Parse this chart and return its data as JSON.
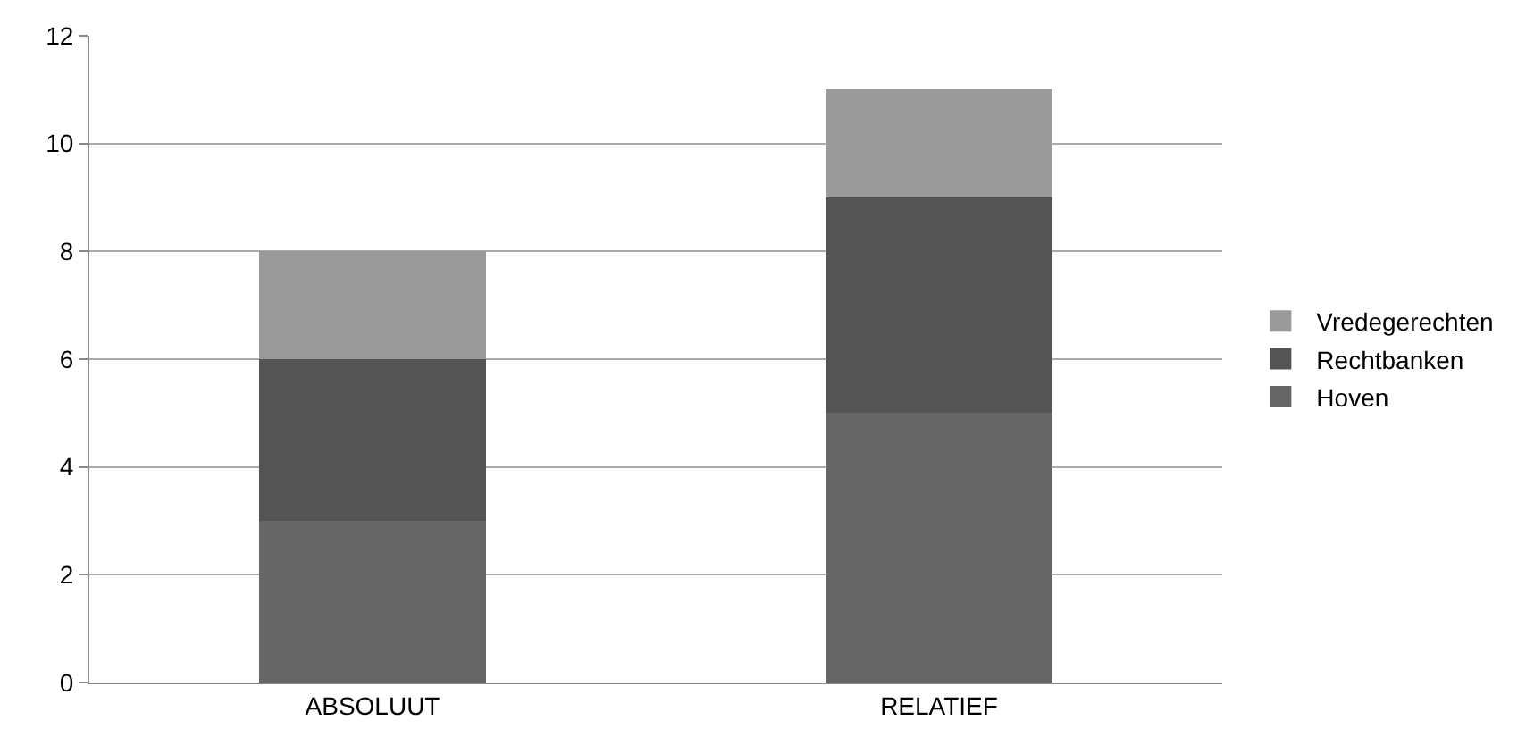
{
  "chart_data": {
    "type": "bar",
    "stacked": true,
    "categories": [
      "ABSOLUUT",
      "RELATIEF"
    ],
    "series": [
      {
        "name": "Hoven",
        "color": "#666666",
        "values": [
          3,
          5
        ]
      },
      {
        "name": "Rechtbanken",
        "color": "#545454",
        "values": [
          3,
          4
        ]
      },
      {
        "name": "Vredegerechten",
        "color": "#9a9a9a",
        "values": [
          2,
          2
        ]
      }
    ],
    "ylim": [
      0,
      12
    ],
    "yticks": [
      0,
      2,
      4,
      6,
      8,
      10,
      12
    ],
    "grid": "y",
    "legend": "right"
  }
}
